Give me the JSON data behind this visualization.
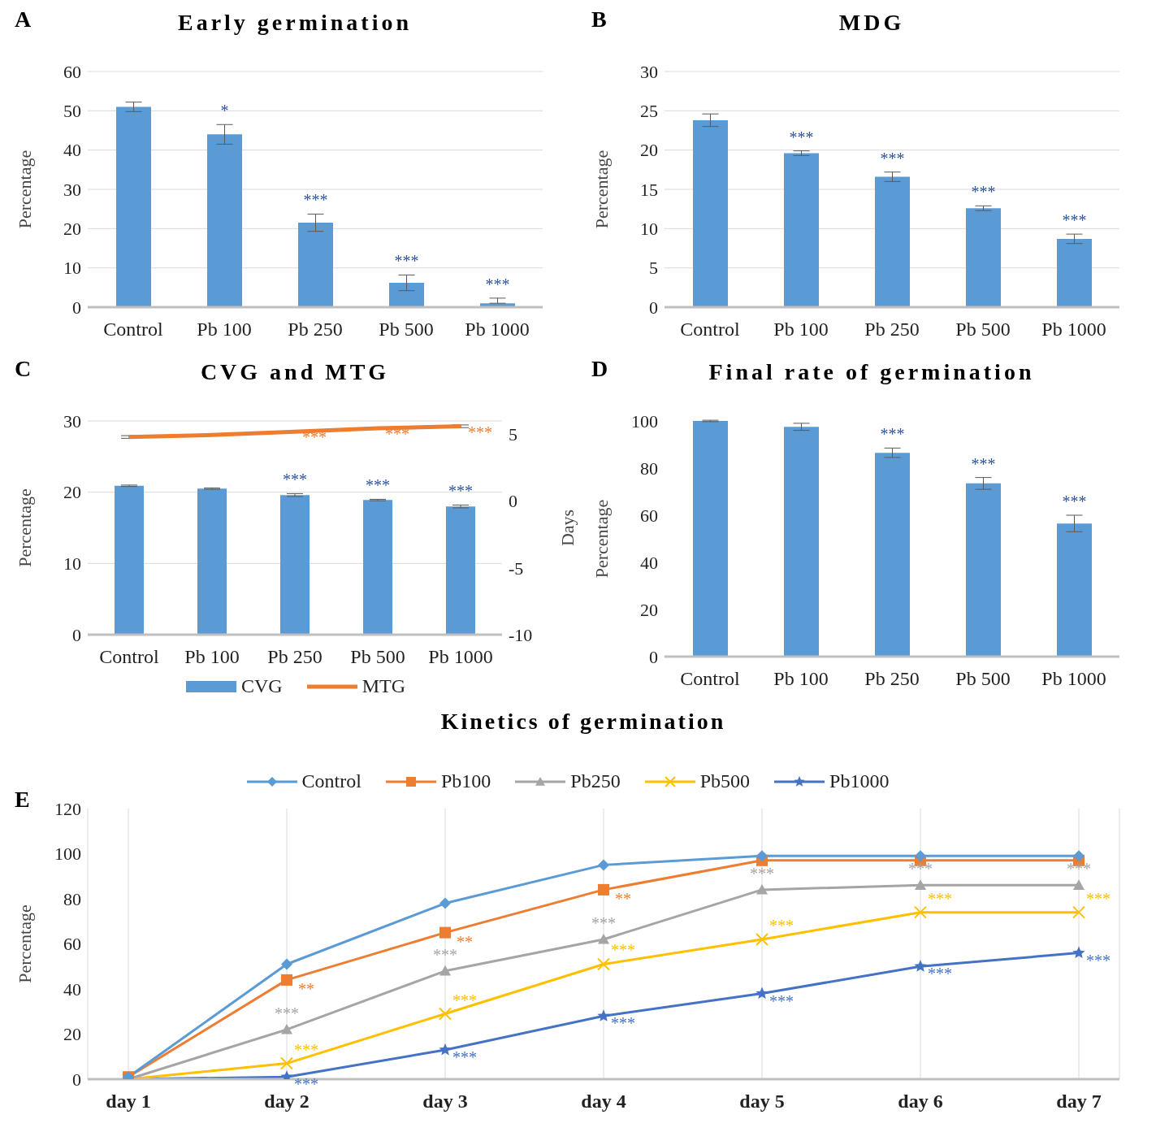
{
  "chart_data": [
    {
      "type": "bar",
      "title": "Early germination",
      "ylabel": "Percentage",
      "categories": [
        "Control",
        "Pb 100",
        "Pb 250",
        "Pb 500",
        "Pb 1000"
      ],
      "series": [
        {
          "color": "#5b9bd5",
          "values": [
            51,
            44,
            21.5,
            6.2,
            1
          ],
          "errors": [
            1.2,
            2.5,
            2.2,
            2,
            [
              1,
              2.3
            ]
          ],
          "value_labels": [
            null,
            "*",
            "***",
            "***",
            "***"
          ]
        }
      ],
      "ylim": [
        0,
        60
      ],
      "yticks": [
        0,
        10,
        20,
        30,
        40,
        50,
        60
      ],
      "grid": "y",
      "annotations": [
        "A"
      ]
    },
    {
      "type": "bar",
      "title": "MDG",
      "ylabel": "Percentage",
      "categories": [
        "Control",
        "Pb 100",
        "Pb 250",
        "Pb 500",
        "Pb 1000"
      ],
      "series": [
        {
          "color": "#5b9bd5",
          "values": [
            23.8,
            19.6,
            16.6,
            12.6,
            8.7
          ],
          "errors": [
            0.8,
            0.3,
            0.6,
            0.3,
            0.6
          ],
          "value_labels": [
            null,
            "***",
            "***",
            "***",
            "***"
          ]
        }
      ],
      "ylim": [
        0,
        30
      ],
      "yticks": [
        0,
        5,
        10,
        15,
        20,
        25,
        30
      ],
      "grid": "y",
      "annotations": [
        "B"
      ]
    },
    {
      "type": "bar",
      "title": "CVG and MTG",
      "ylabel": "Percentage",
      "y2label": "Days",
      "categories": [
        "Control",
        "Pb 100",
        "Pb 250",
        "Pb 500",
        "Pb 1000"
      ],
      "series": [
        {
          "name": "CVG",
          "color": "#5b9bd5",
          "values": [
            20.9,
            20.5,
            19.6,
            18.9,
            18
          ],
          "errors": [
            0.1,
            0.1,
            0.2,
            0.1,
            0.2
          ],
          "value_labels": [
            null,
            null,
            "***",
            "***",
            "***"
          ]
        },
        {
          "name": "MTG",
          "type": "line",
          "axis": "y2",
          "color": "#ed7d31",
          "values": [
            4.8,
            4.95,
            5.2,
            5.45,
            5.6
          ],
          "errors": [
            0.1,
            0.05,
            0.05,
            0.05,
            0.1
          ],
          "value_labels": [
            null,
            null,
            "***",
            "***",
            "***"
          ]
        }
      ],
      "ylim": [
        0,
        30
      ],
      "yticks": [
        0,
        10,
        20,
        30
      ],
      "y2lim": [
        -10,
        6
      ],
      "y2ticks": [
        -10,
        -5,
        0,
        5
      ],
      "grid": "y",
      "legend": "bottom",
      "annotations": [
        "C"
      ]
    },
    {
      "type": "bar",
      "title": "Final rate of germination",
      "ylabel": "Percentage",
      "categories": [
        "Control",
        "Pb 100",
        "Pb 250",
        "Pb 500",
        "Pb 1000"
      ],
      "series": [
        {
          "color": "#5b9bd5",
          "values": [
            100,
            97.5,
            86.5,
            73.5,
            56.5
          ],
          "errors": [
            0.3,
            1.5,
            2,
            2.5,
            3.5
          ],
          "value_labels": [
            null,
            null,
            "***",
            "***",
            "***"
          ]
        }
      ],
      "ylim": [
        0,
        100
      ],
      "yticks": [
        0,
        20,
        40,
        60,
        80,
        100
      ],
      "annotations": [
        "D"
      ]
    },
    {
      "type": "line",
      "title": "Kinetics of germination",
      "ylabel": "Percentage",
      "categories": [
        "day 1",
        "day 2",
        "day 3",
        "day 4",
        "day 5",
        "day 6",
        "day 7"
      ],
      "series": [
        {
          "name": "Control",
          "color": "#5b9bd5",
          "marker": "diamond",
          "values": [
            1,
            51,
            78,
            95,
            99,
            99,
            99
          ]
        },
        {
          "name": "Pb100",
          "color": "#ed7d31",
          "marker": "square",
          "values": [
            1,
            44,
            65,
            84,
            97,
            97,
            97
          ],
          "value_labels": [
            null,
            "**",
            "**",
            "**",
            null,
            null,
            null
          ]
        },
        {
          "name": "Pb250",
          "color": "#a5a5a5",
          "marker": "triangle",
          "values": [
            0,
            22,
            48,
            62,
            84,
            86,
            86
          ],
          "value_labels": [
            null,
            "***",
            "***",
            "***",
            "***",
            "***",
            "***"
          ]
        },
        {
          "name": "Pb500",
          "color": "#ffc000",
          "marker": "cross",
          "values": [
            0,
            7,
            29,
            51,
            62,
            74,
            74
          ],
          "value_labels": [
            null,
            "***",
            "***",
            "***",
            "***",
            "***",
            "***"
          ]
        },
        {
          "name": "Pb1000",
          "color": "#4472c4",
          "marker": "star",
          "values": [
            0,
            1,
            13,
            28,
            38,
            50,
            56
          ],
          "value_labels": [
            null,
            "***",
            "***",
            "***",
            "***",
            "***",
            "***"
          ]
        }
      ],
      "ylim": [
        0,
        120
      ],
      "yticks": [
        0,
        20,
        40,
        60,
        80,
        100,
        120
      ],
      "grid": "x",
      "legend": "top",
      "annotations": [
        "E"
      ]
    }
  ]
}
